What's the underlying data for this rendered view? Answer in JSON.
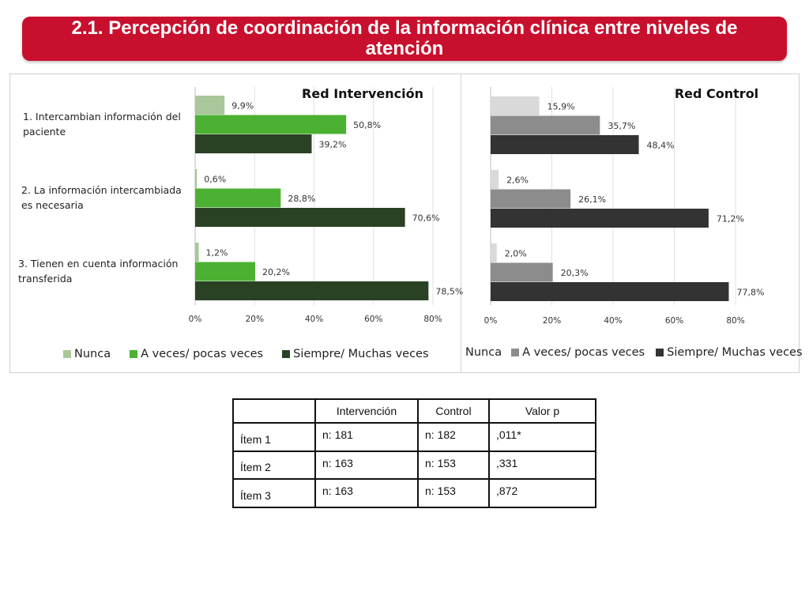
{
  "title": "2.1. Percepción de coordinación de la información clínica entre niveles de atención",
  "categories": [
    [
      "1. Intercambian información del",
      "paciente"
    ],
    [
      "2. La información intercambiada",
      "es necesaria"
    ],
    [
      "3. Tienen en cuenta información",
      "transferida"
    ]
  ],
  "chart_data": [
    {
      "type": "bar",
      "orientation": "horizontal",
      "title": "Red Intervención",
      "categories": [
        "1. Intercambian información del paciente",
        "2. La información intercambiada es necesaria",
        "3. Tienen en cuenta información transferida"
      ],
      "series": [
        {
          "name": "Nunca",
          "color": "#a9c79a",
          "values": [
            9.9,
            0.6,
            1.2
          ],
          "labels": [
            "9,9%",
            "0,6%",
            "1,2%"
          ]
        },
        {
          "name": "A veces/ pocas veces",
          "color": "#4cb133",
          "values": [
            50.8,
            28.8,
            20.2
          ],
          "labels": [
            "50,8%",
            "28,8%",
            "20,2%"
          ]
        },
        {
          "name": "Siempre/ Muchas veces",
          "color": "#2a4223",
          "values": [
            39.2,
            70.6,
            78.5
          ],
          "labels": [
            "39,2%",
            "70,6%",
            "78,5%"
          ]
        }
      ],
      "x_ticks": [
        "0%",
        "20%",
        "40%",
        "60%",
        "80%"
      ],
      "xlim": [
        0,
        80
      ],
      "grid": true,
      "legend": "bottom"
    },
    {
      "type": "bar",
      "orientation": "horizontal",
      "title": "Red Control",
      "categories": [
        "1. Intercambian información del paciente",
        "2. La información intercambiada es necesaria",
        "3. Tienen en cuenta información transferida"
      ],
      "series": [
        {
          "name": "Nunca",
          "color": "#d9d9d9",
          "values": [
            15.9,
            2.6,
            2.0
          ],
          "labels": [
            "15,9%",
            "2,6%",
            "2,0%"
          ]
        },
        {
          "name": "A veces/ pocas veces",
          "color": "#8c8c8c",
          "values": [
            35.7,
            26.1,
            20.3
          ],
          "labels": [
            "35,7%",
            "26,1%",
            "20,3%"
          ]
        },
        {
          "name": "Siempre/ Muchas veces",
          "color": "#333333",
          "values": [
            48.4,
            71.2,
            77.8
          ],
          "labels": [
            "48,4%",
            "71,2%",
            "77,8%"
          ]
        }
      ],
      "x_ticks": [
        "0%",
        "20%",
        "40%",
        "60%",
        "80%"
      ],
      "xlim": [
        0,
        80
      ],
      "grid": true,
      "legend": "bottom"
    }
  ],
  "table": {
    "headers": [
      "",
      "Intervención",
      "Control",
      "Valor p"
    ],
    "rows": [
      [
        "Ítem 1",
        "n: 181",
        "n: 182",
        ",011*"
      ],
      [
        "Ítem 2",
        "n: 163",
        "n: 153",
        ",331"
      ],
      [
        "Ítem 3",
        "n: 163",
        "n: 153",
        ",872"
      ]
    ]
  }
}
